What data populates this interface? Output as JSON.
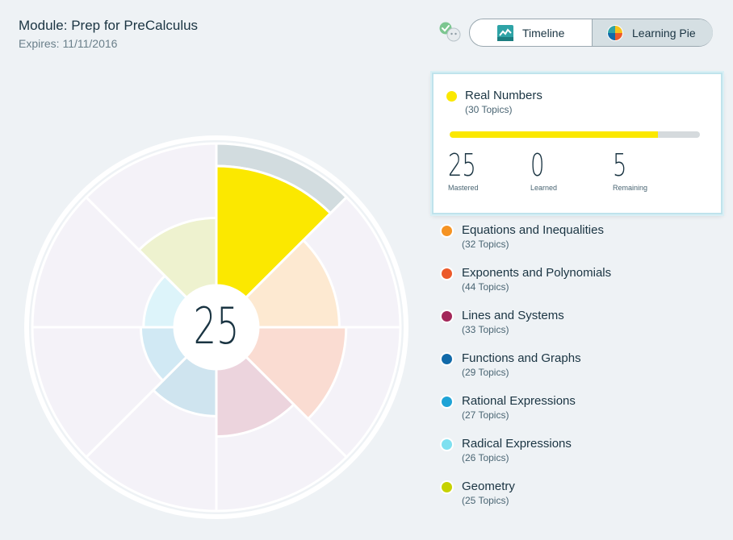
{
  "header": {
    "module_title": "Module: Prep for PreCalculus",
    "expires": "Expires: 11/11/2016"
  },
  "toggle": {
    "timeline_label": "Timeline",
    "pie_label": "Learning Pie",
    "active": "pie"
  },
  "pie": {
    "center_value": "25"
  },
  "selected": {
    "name": "Real Numbers",
    "topics": "(30 Topics)",
    "color": "#fbe800",
    "progress_fraction": 0.833,
    "mastered_value": "25",
    "mastered_label": "Mastered",
    "learned_value": "0",
    "learned_label": "Learned",
    "remaining_value": "5",
    "remaining_label": "Remaining"
  },
  "legend": [
    {
      "name": "Equations and Inequalities",
      "topics": "(32 Topics)",
      "color": "#f59323"
    },
    {
      "name": "Exponents and Polynomials",
      "topics": "(44 Topics)",
      "color": "#ec5a2a"
    },
    {
      "name": "Lines and Systems",
      "topics": "(33 Topics)",
      "color": "#a3285a"
    },
    {
      "name": "Functions and Graphs",
      "topics": "(29 Topics)",
      "color": "#116aa9"
    },
    {
      "name": "Rational Expressions",
      "topics": "(27 Topics)",
      "color": "#1ea3d6"
    },
    {
      "name": "Radical Expressions",
      "topics": "(26 Topics)",
      "color": "#7fe0f0"
    },
    {
      "name": "Geometry",
      "topics": "(25 Topics)",
      "color": "#c6d200"
    }
  ],
  "pie_sectors": [
    {
      "topic": "Real Numbers",
      "fill": "#fbe800",
      "mastered_fraction": 0.833
    },
    {
      "topic": "Equations and Inequalities",
      "fill": "#fde9d1",
      "mastered_fraction": 0.55
    },
    {
      "topic": "Exponents and Polynomials",
      "fill": "#fadcd2",
      "mastered_fraction": 0.6
    },
    {
      "topic": "Lines and Systems",
      "fill": "#ecd4dd",
      "mastered_fraction": 0.45
    },
    {
      "topic": "Functions and Graphs",
      "fill": "#cfe4ef",
      "mastered_fraction": 0.3
    },
    {
      "topic": "Rational Expressions",
      "fill": "#d1e9f4",
      "mastered_fraction": 0.2
    },
    {
      "topic": "Radical Expressions",
      "fill": "#ddf4fa",
      "mastered_fraction": 0.18
    },
    {
      "topic": "Geometry",
      "fill": "#eef2cf",
      "mastered_fraction": 0.45
    }
  ],
  "colors": {
    "background": "#eef2f5",
    "empty_sector": "#f4f2f8",
    "remaining_band": "#d2dcdf",
    "ring": "#ffffff"
  }
}
